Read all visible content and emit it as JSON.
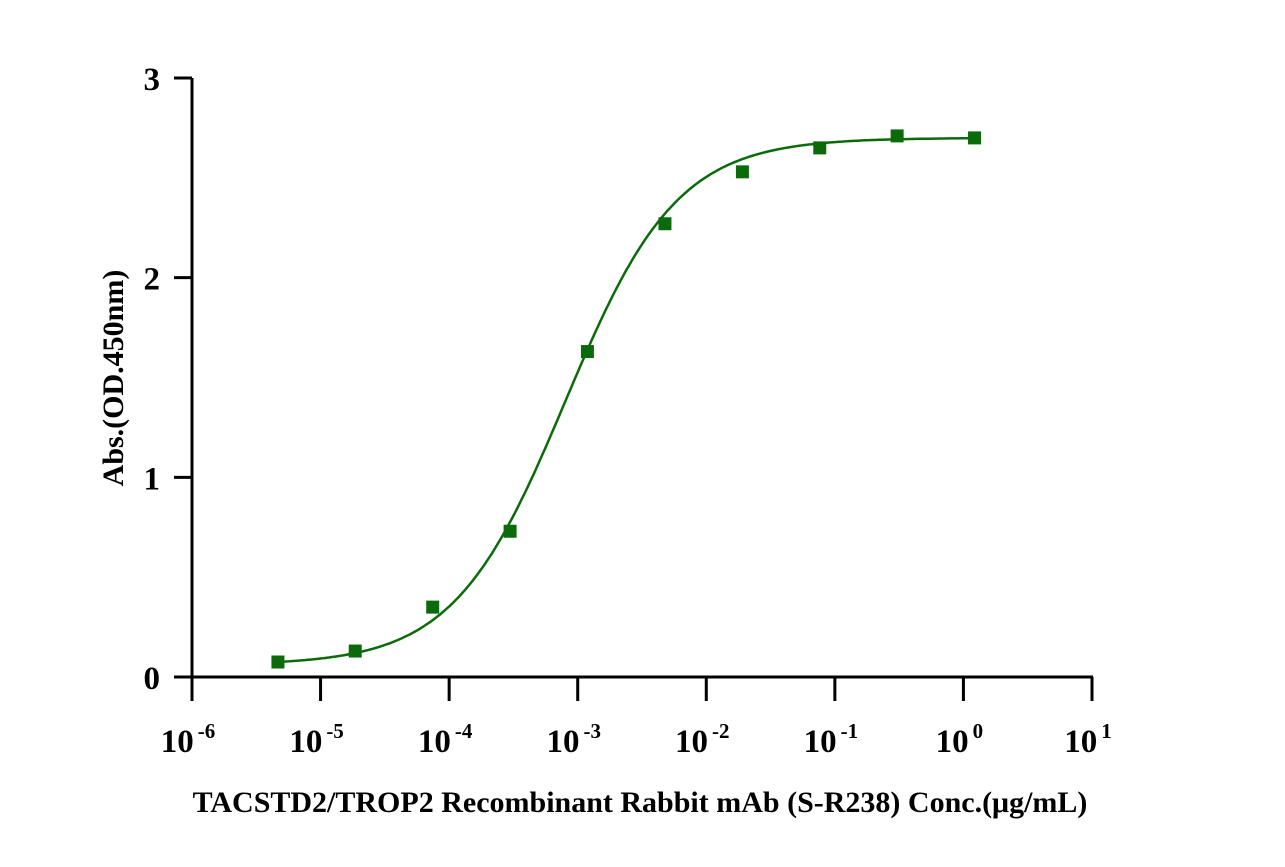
{
  "chart_data": {
    "type": "scatter",
    "title": "",
    "xlabel": "TACSTD2/TROP2 Recombinant Rabbit mAb (S-R238) Conc.(μg/mL)",
    "ylabel": "Abs.(OD.450nm)",
    "xscale": "log",
    "xlim": [
      1e-06,
      10
    ],
    "ylim": [
      0,
      3
    ],
    "x_ticks": [
      {
        "base": "10",
        "exp": "-6"
      },
      {
        "base": "10",
        "exp": "-5"
      },
      {
        "base": "10",
        "exp": "-4"
      },
      {
        "base": "10",
        "exp": "-3"
      },
      {
        "base": "10",
        "exp": "-2"
      },
      {
        "base": "10",
        "exp": "-1"
      },
      {
        "base": "10",
        "exp": "0"
      },
      {
        "base": "10",
        "exp": "1"
      }
    ],
    "y_ticks": [
      "0",
      "1",
      "2",
      "3"
    ],
    "grid": false,
    "legend": "none",
    "color": "#0b6b0b",
    "marker": "square",
    "fit": "sigmoidal curve",
    "series": [
      {
        "x": [
          4.66e-06,
          1.86e-05,
          7.45e-05,
          0.000298,
          0.00119,
          0.00477,
          0.0191,
          0.0763,
          0.305,
          1.22
        ],
        "y": [
          0.075,
          0.13,
          0.35,
          0.73,
          1.63,
          2.27,
          2.53,
          2.65,
          2.71,
          2.7
        ]
      }
    ]
  }
}
